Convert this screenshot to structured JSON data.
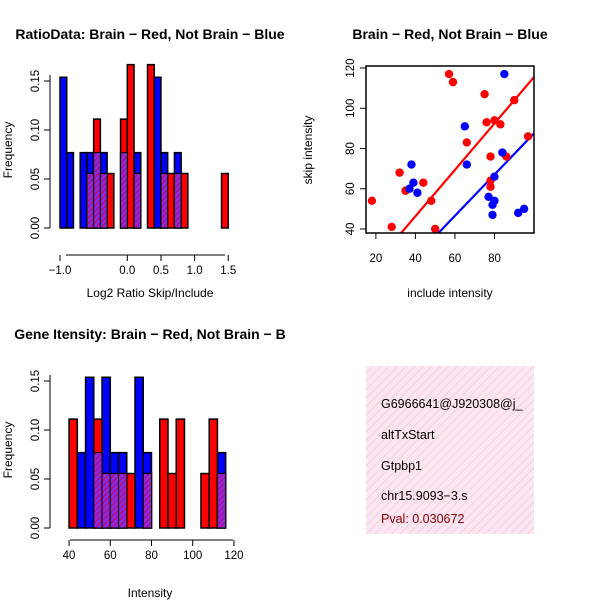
{
  "colors": {
    "red": "#ff0000",
    "blue": "#0000ff",
    "hatch": "#a000a0",
    "info_bg": "#fbe3ef",
    "info_hatch": "#f3c9df",
    "pval": "#8b0000"
  },
  "chart_data": [
    {
      "type": "bar",
      "title": "RatioData: Brain − Red, Not Brain − Blue",
      "xlabel": "Log2 Ratio Skip/Include",
      "ylabel": "Frequency",
      "xlim": [
        -1.0,
        1.6
      ],
      "ylim": [
        0,
        0.17
      ],
      "xticks": [
        -1.0,
        0.0,
        0.5,
        1.0,
        1.5
      ],
      "xtick_labels": [
        "−1.0",
        "0.0",
        "0.5",
        "1.0",
        "1.5"
      ],
      "yticks": [
        0.0,
        0.05,
        0.1,
        0.15
      ],
      "ytick_labels": [
        "0.00",
        "0.05",
        "0.10",
        "0.15"
      ],
      "bin_width": 0.1,
      "series": [
        {
          "name": "Not Brain",
          "color": "blue",
          "bins": [
            [
              -0.95,
              0.1538
            ],
            [
              -0.85,
              0.0769
            ],
            [
              -0.65,
              0.0769
            ],
            [
              -0.55,
              0.0769
            ],
            [
              -0.45,
              0.0769
            ],
            [
              -0.35,
              0.0769
            ],
            [
              -0.05,
              0.0769
            ],
            [
              0.15,
              0.0769
            ],
            [
              0.45,
              0.1538
            ],
            [
              0.55,
              0.0769
            ],
            [
              0.75,
              0.0769
            ]
          ]
        },
        {
          "name": "Brain",
          "color": "red",
          "bins": [
            [
              -0.55,
              0.0556
            ],
            [
              -0.45,
              0.1111
            ],
            [
              -0.35,
              0.0556
            ],
            [
              -0.25,
              0.0556
            ],
            [
              -0.05,
              0.1111
            ],
            [
              0.05,
              0.1667
            ],
            [
              0.15,
              0.0556
            ],
            [
              0.35,
              0.1667
            ],
            [
              0.55,
              0.0556
            ],
            [
              0.65,
              0.0556
            ],
            [
              0.75,
              0.0556
            ],
            [
              0.85,
              0.0556
            ],
            [
              1.45,
              0.0556
            ]
          ]
        }
      ]
    },
    {
      "type": "scatter",
      "title": "Brain − Red, Not Brain − Blue",
      "xlabel": "include intensity",
      "ylabel": "skip intensity",
      "xlim": [
        15,
        100
      ],
      "ylim": [
        38,
        121
      ],
      "xticks": [
        20,
        40,
        60,
        80
      ],
      "yticks": [
        40,
        60,
        80,
        100,
        120
      ],
      "series": [
        {
          "name": "Brain",
          "color": "red",
          "points": [
            [
              18,
              54
            ],
            [
              28,
              41
            ],
            [
              32,
              68
            ],
            [
              35,
              59
            ],
            [
              44,
              63
            ],
            [
              48,
              54
            ],
            [
              50,
              40
            ],
            [
              57,
              117
            ],
            [
              59,
              113
            ],
            [
              66,
              83
            ],
            [
              75,
              107
            ],
            [
              76,
              93
            ],
            [
              78,
              76
            ],
            [
              78,
              61
            ],
            [
              78,
              64
            ],
            [
              80,
              94
            ],
            [
              83,
              92
            ],
            [
              86,
              76
            ],
            [
              90,
              104
            ],
            [
              97,
              86
            ]
          ],
          "fit": [
            [
              15,
              17.5
            ],
            [
              100,
              115.5
            ]
          ]
        },
        {
          "name": "Not Brain",
          "color": "blue",
          "points": [
            [
              37,
              60
            ],
            [
              38,
              72
            ],
            [
              39,
              63
            ],
            [
              41,
              58
            ],
            [
              65,
              91
            ],
            [
              66,
              72
            ],
            [
              77,
              56
            ],
            [
              79,
              52
            ],
            [
              79,
              47
            ],
            [
              80,
              54
            ],
            [
              80,
              66
            ],
            [
              84,
              78
            ],
            [
              85,
              117
            ],
            [
              92,
              48
            ],
            [
              95,
              50
            ]
          ],
          "fit": [
            [
              15,
              0.5
            ],
            [
              100,
              87.5
            ]
          ]
        }
      ]
    },
    {
      "type": "bar",
      "title": "Gene Itensity: Brain − Red, Not Brain − B",
      "xlabel": "Intensity",
      "ylabel": "Frequency",
      "xlim": [
        39,
        121
      ],
      "ylim": [
        0,
        0.17
      ],
      "xticks": [
        40,
        60,
        80,
        100,
        120
      ],
      "xtick_labels": [
        "40",
        "60",
        "80",
        "100",
        "120"
      ],
      "yticks": [
        0.0,
        0.05,
        0.1,
        0.15
      ],
      "ytick_labels": [
        "0.00",
        "0.05",
        "0.10",
        "0.15"
      ],
      "bin_width": 4,
      "series": [
        {
          "name": "Not Brain",
          "color": "blue",
          "bins": [
            [
              46,
              0.0769
            ],
            [
              50,
              0.1538
            ],
            [
              54,
              0.0769
            ],
            [
              58,
              0.1538
            ],
            [
              62,
              0.0769
            ],
            [
              66,
              0.0769
            ],
            [
              74,
              0.1538
            ],
            [
              78,
              0.0769
            ],
            [
              114,
              0.0769
            ]
          ]
        },
        {
          "name": "Brain",
          "color": "red",
          "bins": [
            [
              42,
              0.1111
            ],
            [
              54,
              0.1111
            ],
            [
              58,
              0.0556
            ],
            [
              62,
              0.0556
            ],
            [
              66,
              0.0556
            ],
            [
              70,
              0.0556
            ],
            [
              78,
              0.0556
            ],
            [
              86,
              0.1111
            ],
            [
              90,
              0.0556
            ],
            [
              94,
              0.1111
            ],
            [
              106,
              0.0556
            ],
            [
              110,
              0.1111
            ],
            [
              114,
              0.0556
            ]
          ]
        }
      ]
    }
  ],
  "info": {
    "id": "G6966641@J920308@j_",
    "event": "altTxStart",
    "gene": "Gtpbp1",
    "coord": "chr15.9093−3.s",
    "pval": "Pval: 0.030672"
  }
}
